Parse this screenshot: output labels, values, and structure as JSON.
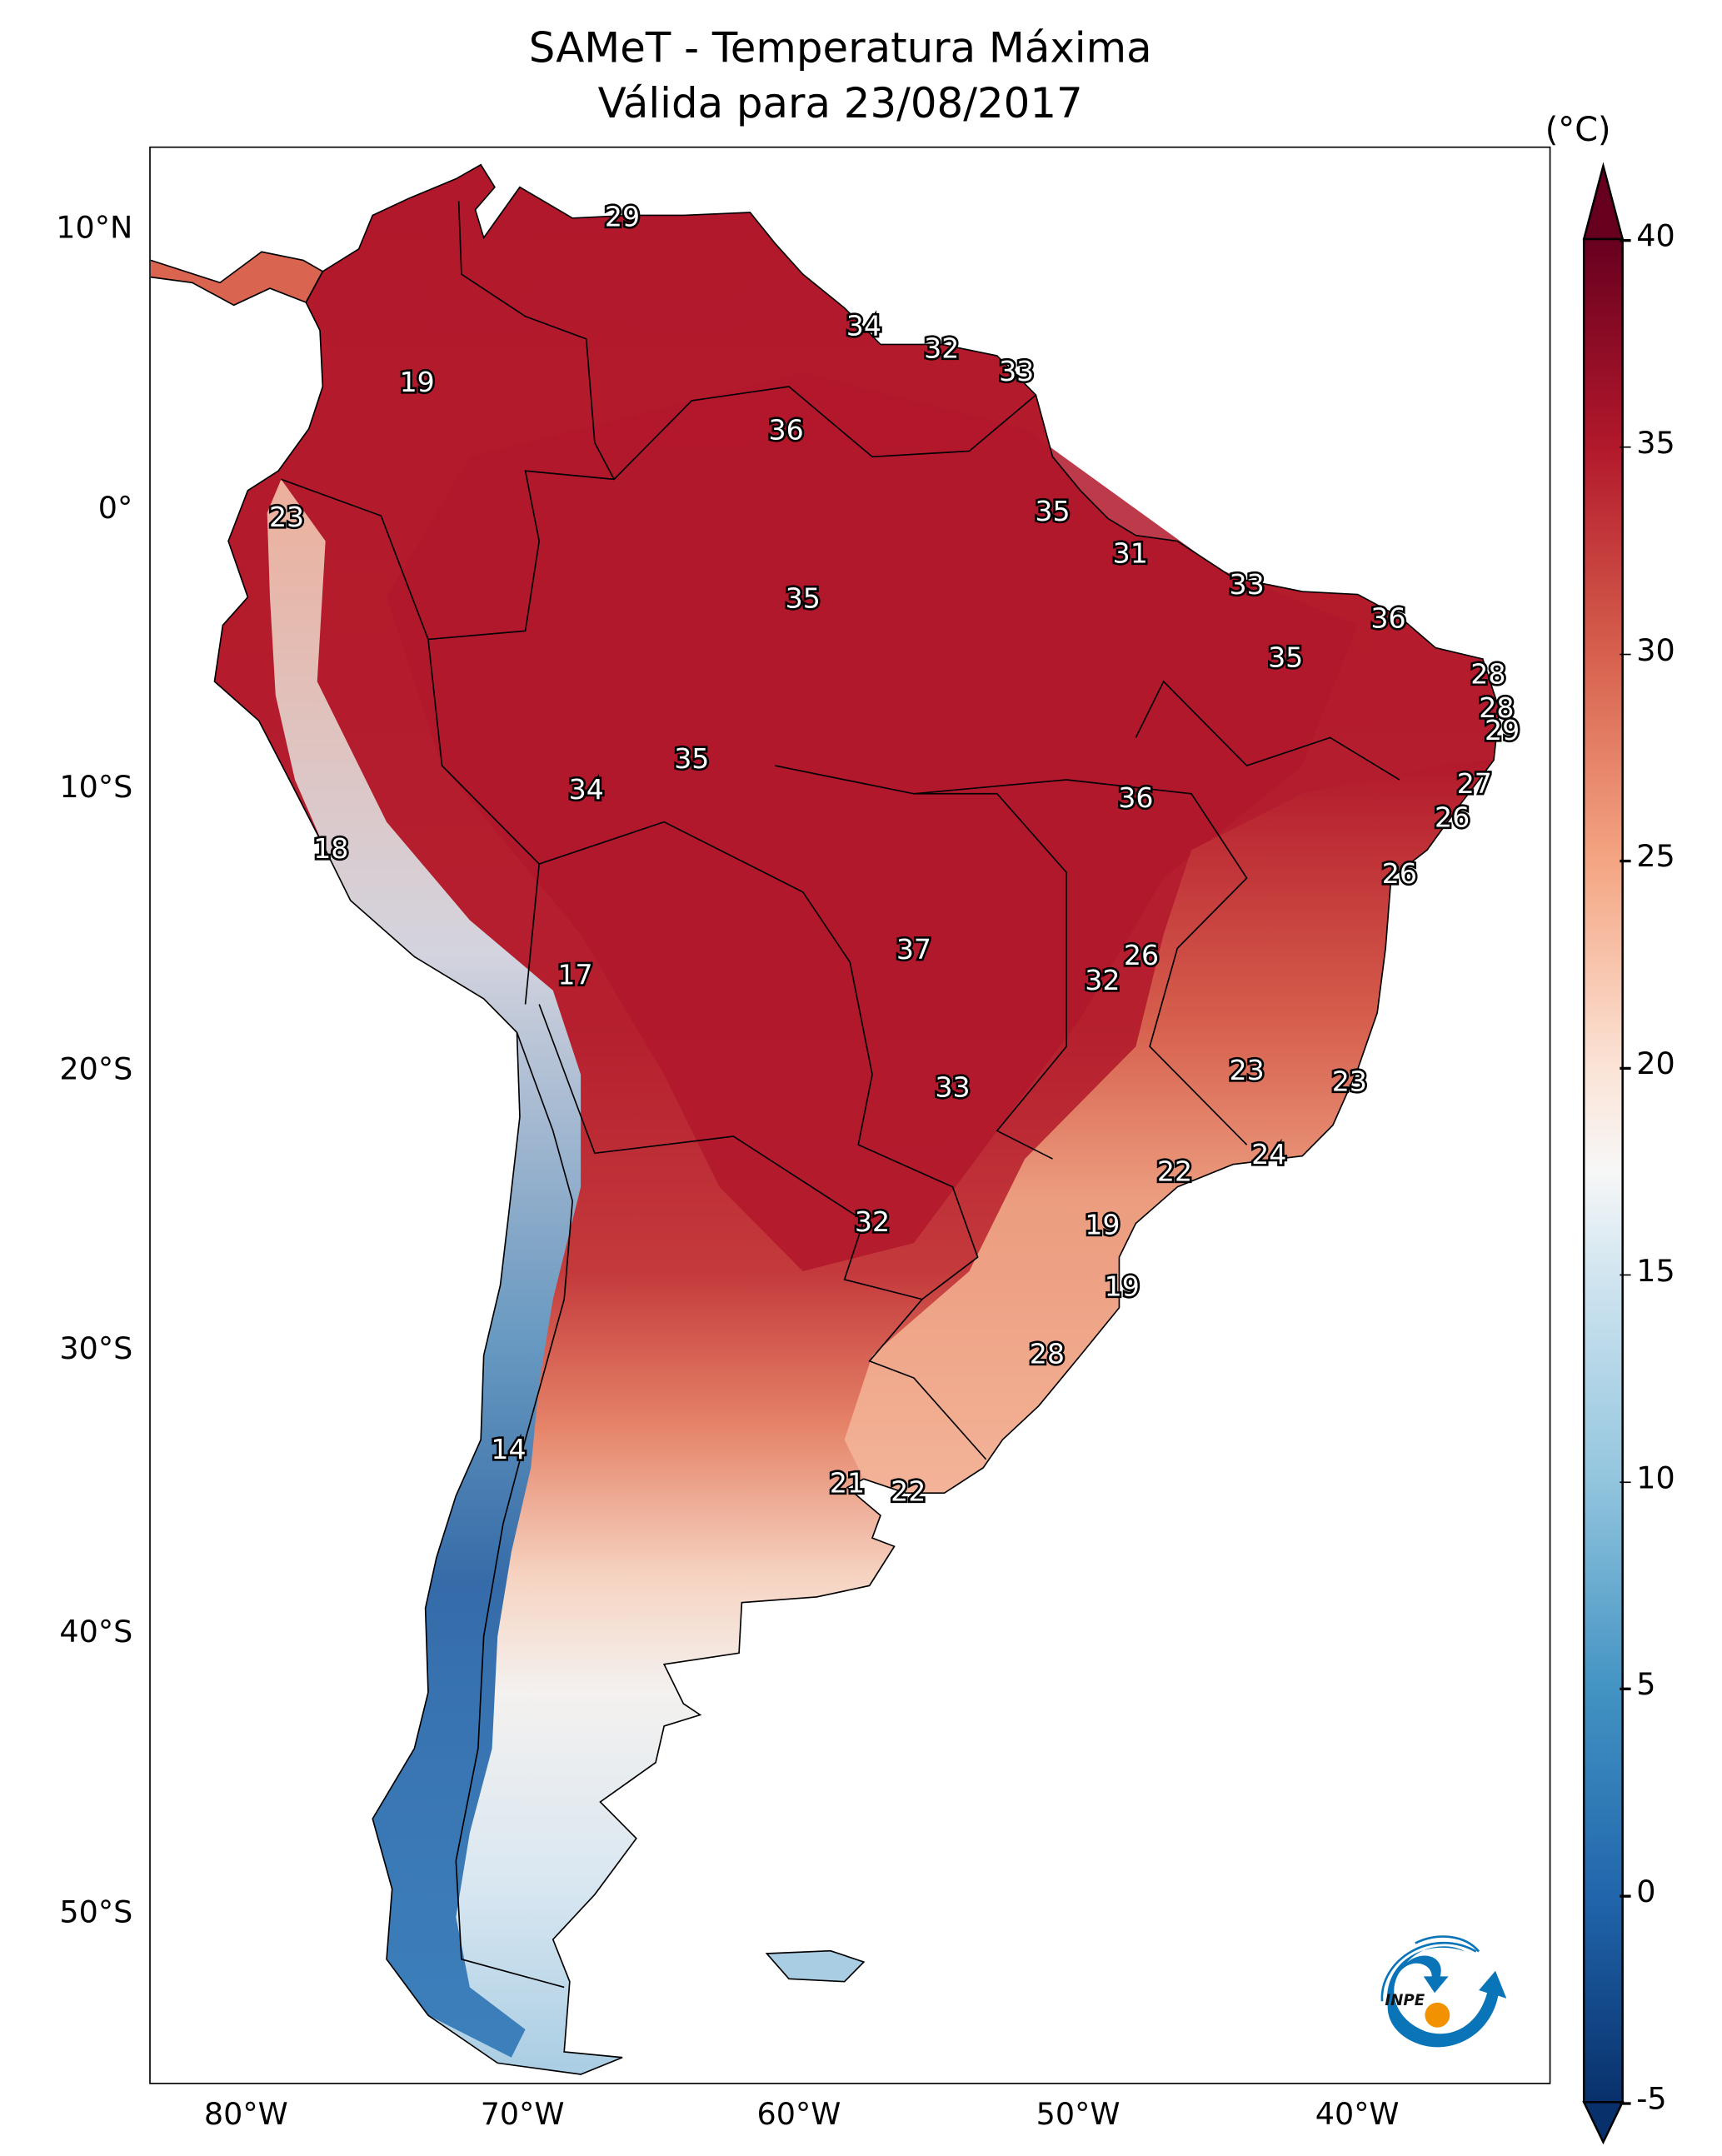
{
  "title": {
    "line1": "SAMeT - Temperatura Máxima",
    "line2": "Válida para 23/08/2017"
  },
  "chart_data": {
    "type": "heatmap",
    "title": "SAMeT - Temperatura Máxima",
    "subtitle": "Válida para 23/08/2017",
    "variable": "Maximum temperature",
    "units": "(°C)",
    "x_ticks": [
      "80°W",
      "70°W",
      "60°W",
      "50°W",
      "40°W"
    ],
    "x_tick_values": [
      -80,
      -70,
      -60,
      -50,
      -40
    ],
    "y_ticks": [
      "10°N",
      "0°",
      "10°S",
      "20°S",
      "30°S",
      "40°S",
      "50°S"
    ],
    "y_tick_values": [
      10,
      0,
      -10,
      -20,
      -30,
      -40,
      -50
    ],
    "xlim": [
      -83.5,
      -33.0
    ],
    "ylim": [
      -56.0,
      13.0
    ],
    "grid": false,
    "colorbar": {
      "label": "(°C)",
      "ticks": [
        40,
        35,
        30,
        25,
        20,
        15,
        10,
        5,
        0,
        -5
      ],
      "range": [
        -5,
        40
      ],
      "extend": "both",
      "colormap": "RdBu_r",
      "placement": "right",
      "stops": [
        {
          "value": -5,
          "color": "#08306b"
        },
        {
          "value": 0,
          "color": "#2166ac"
        },
        {
          "value": 5,
          "color": "#4393c3"
        },
        {
          "value": 10,
          "color": "#92c5de"
        },
        {
          "value": 15,
          "color": "#d1e5f0"
        },
        {
          "value": 17.5,
          "color": "#f7f7f7"
        },
        {
          "value": 20,
          "color": "#fbe3d6"
        },
        {
          "value": 25,
          "color": "#f4a582"
        },
        {
          "value": 30,
          "color": "#d6604d"
        },
        {
          "value": 35,
          "color": "#b2182b"
        },
        {
          "value": 40,
          "color": "#67001f"
        }
      ]
    },
    "station_labels": [
      {
        "value": 29,
        "lon": -66.5,
        "lat": 10.5
      },
      {
        "value": 19,
        "lon": -73.9,
        "lat": 4.6
      },
      {
        "value": 34,
        "lon": -57.8,
        "lat": 6.6
      },
      {
        "value": 32,
        "lon": -55.0,
        "lat": 5.8
      },
      {
        "value": 33,
        "lon": -52.3,
        "lat": 5.0
      },
      {
        "value": 36,
        "lon": -60.6,
        "lat": 2.9
      },
      {
        "value": 23,
        "lon": -78.6,
        "lat": -0.2
      },
      {
        "value": 35,
        "lon": -51.0,
        "lat": 0.0
      },
      {
        "value": 31,
        "lon": -48.2,
        "lat": -1.5
      },
      {
        "value": 35,
        "lon": -60.0,
        "lat": -3.1
      },
      {
        "value": 33,
        "lon": -44.0,
        "lat": -2.6
      },
      {
        "value": 36,
        "lon": -38.9,
        "lat": -3.8
      },
      {
        "value": 35,
        "lon": -42.6,
        "lat": -5.2
      },
      {
        "value": 28,
        "lon": -35.3,
        "lat": -5.8
      },
      {
        "value": 28,
        "lon": -35.0,
        "lat": -7.0
      },
      {
        "value": 29,
        "lon": -34.8,
        "lat": -7.8
      },
      {
        "value": 35,
        "lon": -64.0,
        "lat": -8.8
      },
      {
        "value": 34,
        "lon": -67.8,
        "lat": -9.9
      },
      {
        "value": 36,
        "lon": -48.0,
        "lat": -10.2
      },
      {
        "value": 27,
        "lon": -35.8,
        "lat": -9.7
      },
      {
        "value": 26,
        "lon": -36.6,
        "lat": -10.9
      },
      {
        "value": 18,
        "lon": -77.0,
        "lat": -12.0
      },
      {
        "value": 26,
        "lon": -38.5,
        "lat": -12.9
      },
      {
        "value": 37,
        "lon": -56.0,
        "lat": -15.6
      },
      {
        "value": 26,
        "lon": -47.8,
        "lat": -15.8
      },
      {
        "value": 32,
        "lon": -49.2,
        "lat": -16.7
      },
      {
        "value": 17,
        "lon": -68.2,
        "lat": -16.5
      },
      {
        "value": 23,
        "lon": -44.0,
        "lat": -19.9
      },
      {
        "value": 23,
        "lon": -40.3,
        "lat": -20.3
      },
      {
        "value": 33,
        "lon": -54.6,
        "lat": -20.5
      },
      {
        "value": 24,
        "lon": -43.2,
        "lat": -22.9
      },
      {
        "value": 22,
        "lon": -46.6,
        "lat": -23.5
      },
      {
        "value": 32,
        "lon": -57.5,
        "lat": -25.3
      },
      {
        "value": 19,
        "lon": -49.2,
        "lat": -25.4
      },
      {
        "value": 19,
        "lon": -48.5,
        "lat": -27.6
      },
      {
        "value": 28,
        "lon": -51.2,
        "lat": -30.0
      },
      {
        "value": 14,
        "lon": -70.6,
        "lat": -33.4
      },
      {
        "value": 21,
        "lon": -58.4,
        "lat": -34.6
      },
      {
        "value": 22,
        "lon": -56.2,
        "lat": -34.9
      }
    ]
  },
  "logo": {
    "name": "INPE",
    "text": "INPE",
    "colors": {
      "swirl": "#0a74b8",
      "dot": "#f39200"
    }
  }
}
